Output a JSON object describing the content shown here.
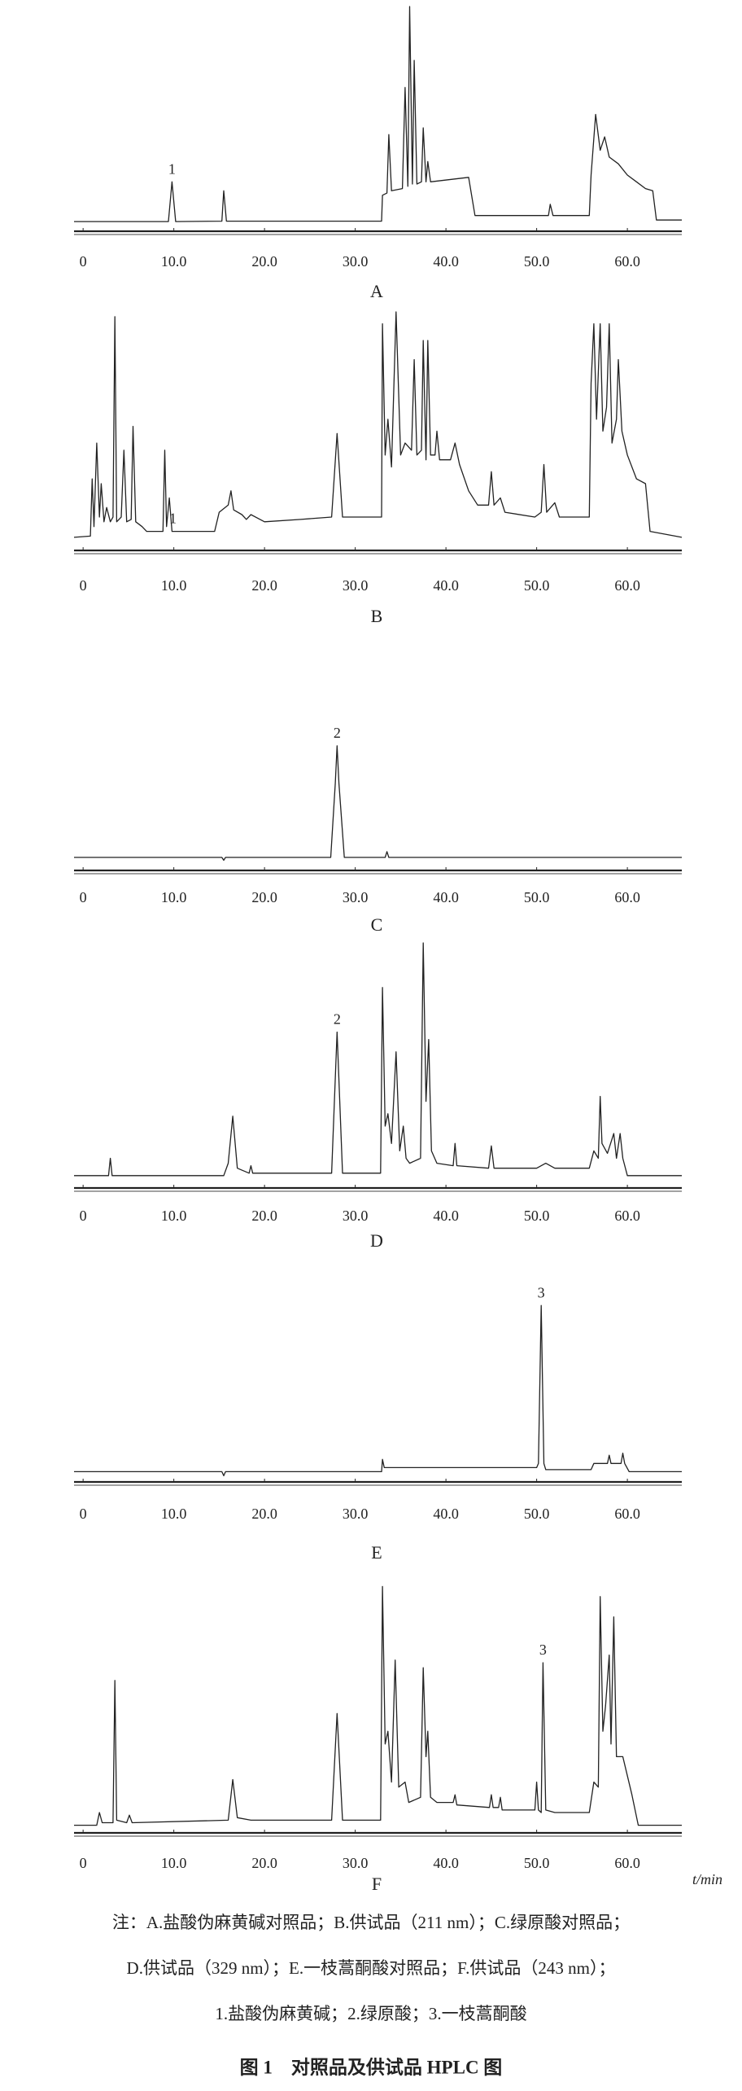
{
  "chart_data": [
    {
      "type": "line",
      "panel_label": "A",
      "color": "#222222",
      "x": [
        -1,
        9.4,
        9.8,
        10.2,
        15.3,
        15.5,
        15.8,
        32.9,
        33.0,
        33.5,
        33.7,
        34.0,
        35.2,
        35.5,
        35.8,
        36.0,
        36.3,
        36.5,
        36.8,
        37.3,
        37.5,
        37.8,
        38.0,
        38.3,
        42.5,
        43.2,
        51.3,
        51.5,
        51.8,
        55.8,
        56.0,
        56.5,
        57.0,
        57.5,
        58.0,
        59,
        60,
        61,
        62,
        62.8,
        63.2,
        66
      ],
      "values": [
        4.3,
        4.3,
        22,
        4.3,
        4.5,
        18,
        4.5,
        4.5,
        16,
        17,
        43,
        18,
        19,
        64,
        20,
        100,
        21,
        76,
        21,
        22,
        46,
        22,
        31,
        22,
        24,
        7,
        7,
        12,
        7,
        7,
        25,
        52,
        36,
        42,
        33,
        30,
        25,
        22,
        19,
        18,
        5,
        5
      ],
      "xlim": [
        -1,
        66
      ],
      "ylim": [
        0,
        100
      ],
      "xticks": [
        0,
        {
          "value": 10,
          "label": "10.0"
        },
        {
          "value": 20,
          "label": "20.0"
        },
        {
          "value": 30,
          "label": "30.0"
        },
        {
          "value": 40,
          "label": "40.0"
        },
        {
          "value": 50,
          "label": "50.0"
        },
        {
          "value": 60,
          "label": "60.0"
        }
      ],
      "annotations": [
        {
          "text": "1",
          "x": 9.8
        }
      ]
    },
    {
      "type": "line",
      "panel_label": "B",
      "color": "#222222",
      "x": [
        -1,
        0.8,
        1,
        1.2,
        1.5,
        1.8,
        2,
        2.3,
        2.6,
        3,
        3.3,
        3.5,
        3.7,
        4.2,
        4.5,
        4.8,
        5.3,
        5.5,
        5.8,
        6.5,
        7,
        8.8,
        9,
        9.2,
        9.5,
        9.8,
        14.5,
        15,
        16,
        16.3,
        16.6,
        17.5,
        18,
        18.5,
        20,
        24,
        27.4,
        28,
        28.6,
        32.9,
        33,
        33.3,
        33.6,
        34,
        34.5,
        35,
        35.5,
        36.2,
        36.5,
        36.8,
        37.3,
        37.5,
        37.8,
        38,
        38.3,
        38.8,
        39,
        39.3,
        40.5,
        41,
        41.5,
        42.5,
        43.5,
        44.7,
        45,
        45.3,
        46,
        46.5,
        49.8,
        50.5,
        50.8,
        51.1,
        52,
        52.5,
        55.8,
        56,
        56.3,
        56.6,
        57,
        57.3,
        57.7,
        58,
        58.3,
        58.8,
        59,
        59.4,
        60,
        61,
        62,
        62.5,
        66
      ],
      "values": [
        5.5,
        6,
        30,
        10,
        45,
        14,
        28,
        12,
        18,
        12,
        14,
        98,
        12,
        14,
        42,
        12,
        13,
        52,
        12,
        10,
        8,
        8,
        42,
        10,
        22,
        8,
        8,
        16,
        19,
        25,
        17,
        15,
        13,
        15,
        12,
        13,
        14,
        49,
        14,
        14,
        95,
        40,
        55,
        35,
        100,
        40,
        45,
        42,
        80,
        40,
        42,
        88,
        38,
        88,
        40,
        40,
        50,
        38,
        38,
        45,
        36,
        25,
        19,
        19,
        33,
        19,
        22,
        16,
        14,
        16,
        36,
        16,
        20,
        14,
        14,
        70,
        95,
        55,
        95,
        50,
        60,
        95,
        45,
        55,
        80,
        50,
        40,
        30,
        28,
        8,
        5.5
      ],
      "xlim": [
        -1,
        66
      ],
      "ylim": [
        0,
        100
      ],
      "xticks": [
        0,
        {
          "value": 10,
          "label": "10.0"
        },
        {
          "value": 20,
          "label": "20.0"
        },
        {
          "value": 30,
          "label": "30.0"
        },
        {
          "value": 40,
          "label": "40.0"
        },
        {
          "value": 50,
          "label": "50.0"
        },
        {
          "value": 60,
          "label": "60.0"
        }
      ],
      "annotations": [
        {
          "text": "1",
          "x": 9.9
        }
      ]
    },
    {
      "type": "line",
      "panel_label": "C",
      "color": "#222222",
      "x": [
        -1,
        15.3,
        15.5,
        15.7,
        27.3,
        27.8,
        28,
        28.2,
        28.8,
        33.3,
        33.5,
        33.7,
        66
      ],
      "values": [
        9,
        9,
        7,
        9,
        9,
        60,
        86,
        60,
        9,
        9,
        13,
        9,
        9
      ],
      "xlim": [
        -1,
        66
      ],
      "ylim": [
        0,
        100
      ],
      "xticks": [
        0,
        {
          "value": 10,
          "label": "10.0"
        },
        {
          "value": 20,
          "label": "20.0"
        },
        {
          "value": 30,
          "label": "30.0"
        },
        {
          "value": 40,
          "label": "40.0"
        },
        {
          "value": 50,
          "label": "50.0"
        },
        {
          "value": 60,
          "label": "60.0"
        }
      ],
      "annotations": [
        {
          "text": "2",
          "x": 28
        }
      ]
    },
    {
      "type": "line",
      "panel_label": "D",
      "color": "#222222",
      "x": [
        -1,
        2.8,
        3,
        3.2,
        15.5,
        16,
        16.5,
        17,
        18.3,
        18.5,
        18.7,
        27.4,
        28,
        28.6,
        32.8,
        33,
        33.3,
        33.6,
        34,
        34.5,
        34.9,
        35.3,
        35.6,
        36,
        37.2,
        37.5,
        37.8,
        38.1,
        38.4,
        39,
        40.8,
        41,
        41.2,
        44.7,
        45,
        45.3,
        50,
        51,
        52,
        55.8,
        56.3,
        56.8,
        57,
        57.2,
        57.8,
        58.5,
        58.8,
        59.2,
        59.5,
        60,
        66
      ],
      "values": [
        5,
        5,
        12,
        5,
        5,
        10,
        29,
        8,
        6,
        9,
        6,
        6,
        63,
        6,
        6,
        81,
        25,
        30,
        18,
        55,
        15,
        25,
        12,
        10,
        12,
        99,
        35,
        60,
        15,
        10,
        9,
        18,
        9,
        8,
        17,
        8,
        8,
        10,
        8,
        8,
        15,
        12,
        37,
        18,
        14,
        22,
        12,
        22,
        12,
        5,
        5
      ],
      "xlim": [
        -1,
        66
      ],
      "ylim": [
        0,
        100
      ],
      "xticks": [
        0,
        {
          "value": 10,
          "label": "10.0"
        },
        {
          "value": 20,
          "label": "20.0"
        },
        {
          "value": 30,
          "label": "30.0"
        },
        {
          "value": 40,
          "label": "40.0"
        },
        {
          "value": 50,
          "label": "50.0"
        },
        {
          "value": 60,
          "label": "60.0"
        }
      ],
      "annotations": [
        {
          "text": "2",
          "x": 28
        }
      ]
    },
    {
      "type": "line",
      "panel_label": "E",
      "color": "#222222",
      "x": [
        -1,
        15.3,
        15.5,
        15.7,
        32.9,
        33,
        33.2,
        50,
        50.2,
        50.5,
        50.8,
        51,
        56,
        56.3,
        57.8,
        58,
        58.2,
        59.3,
        59.5,
        59.7,
        60.2,
        66
      ],
      "values": [
        5,
        5,
        3,
        5,
        5,
        11,
        7,
        7,
        9,
        86,
        9,
        6,
        6,
        9,
        9,
        13,
        9,
        9,
        14,
        9,
        5,
        5
      ],
      "xlim": [
        -1,
        66
      ],
      "ylim": [
        0,
        100
      ],
      "xticks": [
        0,
        {
          "value": 10,
          "label": "10.0"
        },
        {
          "value": 20,
          "label": "20.0"
        },
        {
          "value": 30,
          "label": "30.0"
        },
        {
          "value": 40,
          "label": "40.0"
        },
        {
          "value": 50,
          "label": "50.0"
        },
        {
          "value": 60,
          "label": "60.0"
        }
      ],
      "annotations": [
        {
          "text": "3",
          "x": 50.5
        }
      ]
    },
    {
      "type": "line",
      "panel_label": "F",
      "color": "#222222",
      "x_label": "t/min",
      "x": [
        -1,
        1.5,
        1.8,
        2.1,
        3.3,
        3.5,
        3.7,
        4.8,
        5.1,
        5.4,
        16,
        16.5,
        17,
        18.5,
        27.4,
        28,
        28.6,
        32.8,
        33,
        33.3,
        33.6,
        34,
        34.4,
        34.8,
        35.5,
        35.9,
        37.2,
        37.5,
        37.8,
        38,
        38.3,
        39,
        40.8,
        41,
        41.2,
        44.8,
        45,
        45.2,
        45.8,
        46,
        46.2,
        49.8,
        50,
        50.2,
        50.5,
        50.7,
        51,
        52,
        55.8,
        56.3,
        56.8,
        57,
        57.3,
        57.6,
        58,
        58.2,
        58.5,
        58.8,
        59.5,
        60.5,
        61.2,
        66
      ],
      "values": [
        3,
        3,
        8,
        4,
        4,
        60,
        5,
        4,
        7,
        4,
        5,
        21,
        6,
        5,
        5,
        47,
        5,
        5,
        97,
        35,
        40,
        20,
        68,
        18,
        20,
        12,
        14,
        65,
        30,
        40,
        14,
        12,
        12,
        15,
        11,
        10,
        15,
        10,
        10,
        14,
        9,
        9,
        20,
        9,
        8,
        67,
        9,
        8,
        8,
        20,
        18,
        93,
        40,
        50,
        70,
        35,
        85,
        30,
        30,
        15,
        3,
        3
      ],
      "xlim": [
        -1,
        66
      ],
      "ylim": [
        0,
        100
      ],
      "xticks": [
        0,
        {
          "value": 10,
          "label": "10.0"
        },
        {
          "value": 20,
          "label": "20.0"
        },
        {
          "value": 30,
          "label": "30.0"
        },
        {
          "value": 40,
          "label": "40.0"
        },
        {
          "value": 50,
          "label": "50.0"
        },
        {
          "value": 60,
          "label": "60.0"
        }
      ],
      "annotations": [
        {
          "text": "3",
          "x": 50.7
        }
      ]
    }
  ],
  "notes": [
    "注：A.盐酸伪麻黄碱对照品；B.供试品（211 nm）；C.绿原酸对照品；",
    "D.供试品（329 nm）；E.一枝蒿酮酸对照品；F.供试品（243 nm）；",
    "1.盐酸伪麻黄碱；2.绿原酸；3.一枝蒿酮酸"
  ],
  "caption": "图 1　对照品及供试品 HPLC 图"
}
